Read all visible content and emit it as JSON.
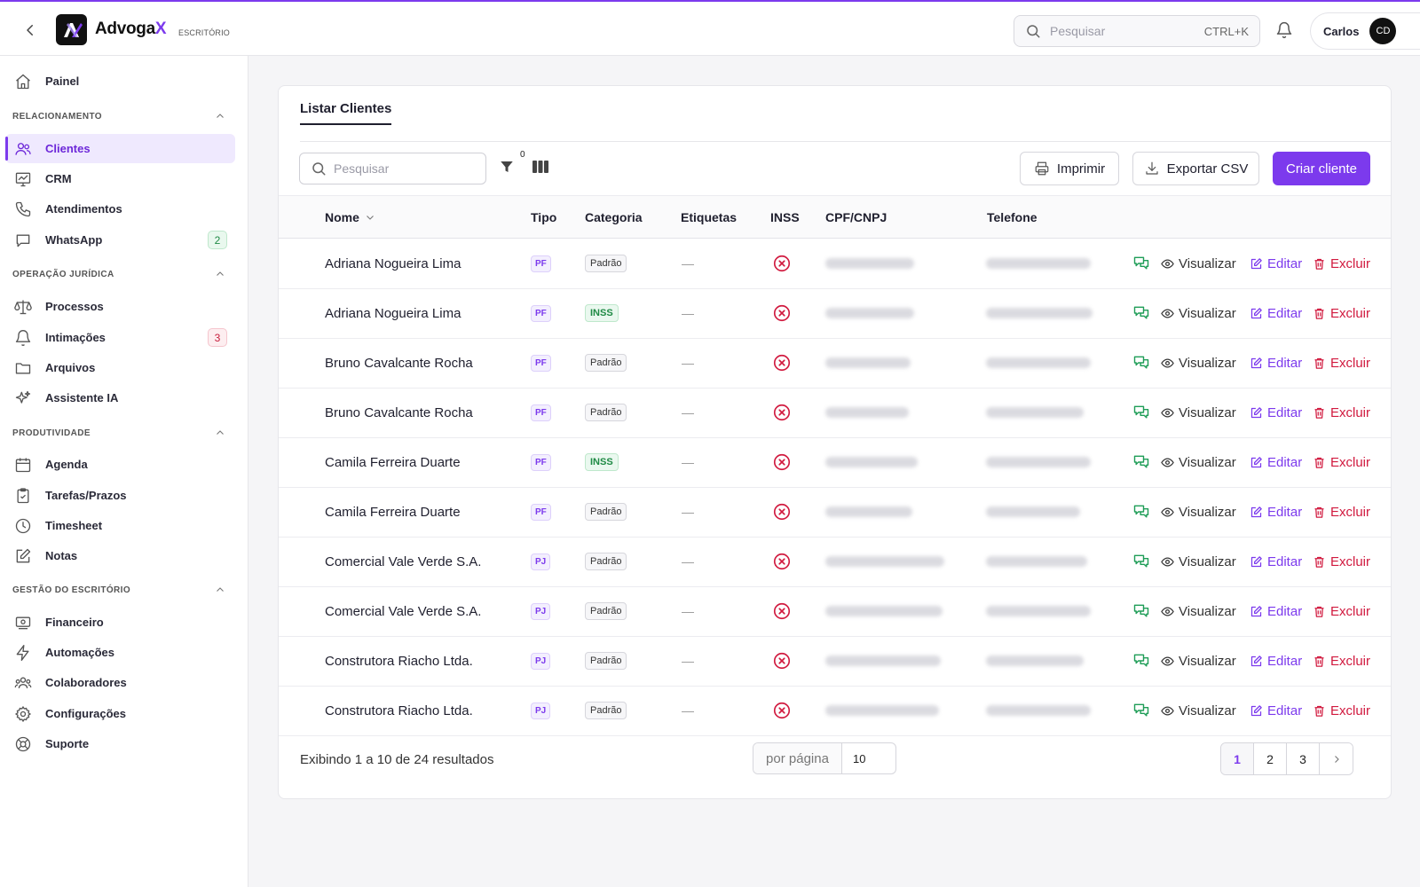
{
  "app": {
    "brand_main": "Advoga",
    "brand_x": "X",
    "brand_sub": "ESCRITÓRIO"
  },
  "header": {
    "search_placeholder": "Pesquisar",
    "search_shortcut": "CTRL+K",
    "user_name": "Carlos",
    "user_initials": "CD"
  },
  "sidebar": {
    "painel": "Painel",
    "sections": {
      "relacionamento": "RELACIONAMENTO",
      "operacao": "OPERAÇÃO JURÍDICA",
      "produtividade": "PRODUTIVIDADE",
      "gestao": "GESTÃO DO ESCRITÓRIO"
    },
    "items": {
      "clientes": "Clientes",
      "crm": "CRM",
      "atendimentos": "Atendimentos",
      "whatsapp": "WhatsApp",
      "whatsapp_badge": "2",
      "processos": "Processos",
      "intimacoes": "Intimações",
      "intimacoes_badge": "3",
      "arquivos": "Arquivos",
      "assistente": "Assistente IA",
      "agenda": "Agenda",
      "tarefas": "Tarefas/Prazos",
      "timesheet": "Timesheet",
      "notas": "Notas",
      "financeiro": "Financeiro",
      "automacoes": "Automações",
      "colaboradores": "Colaboradores",
      "configuracoes": "Configurações",
      "suporte": "Suporte"
    }
  },
  "main": {
    "tab": "Listar Clientes",
    "search_placeholder": "Pesquisar",
    "filter_count": "0",
    "print_label": "Imprimir",
    "csv_label": "Exportar CSV",
    "create_label": "Criar cliente",
    "columns": {
      "nome": "Nome",
      "tipo": "Tipo",
      "categoria": "Categoria",
      "etiquetas": "Etiquetas",
      "inss": "INSS",
      "cpf": "CPF/CNPJ",
      "telefone": "Telefone"
    },
    "actions": {
      "view": "Visualizar",
      "edit": "Editar",
      "delete": "Excluir"
    },
    "rows": [
      {
        "name": "Adriana Nogueira Lima",
        "tipo": "PF",
        "categoria": "Padrão",
        "etiquetas": "—"
      },
      {
        "name": "Adriana Nogueira Lima",
        "tipo": "PF",
        "categoria": "INSS",
        "etiquetas": "—"
      },
      {
        "name": "Bruno Cavalcante Rocha",
        "tipo": "PF",
        "categoria": "Padrão",
        "etiquetas": "—"
      },
      {
        "name": "Bruno Cavalcante Rocha",
        "tipo": "PF",
        "categoria": "Padrão",
        "etiquetas": "—"
      },
      {
        "name": "Camila Ferreira Duarte",
        "tipo": "PF",
        "categoria": "INSS",
        "etiquetas": "—"
      },
      {
        "name": "Camila Ferreira Duarte",
        "tipo": "PF",
        "categoria": "Padrão",
        "etiquetas": "—"
      },
      {
        "name": "Comercial Vale Verde S.A.",
        "tipo": "PJ",
        "categoria": "Padrão",
        "etiquetas": "—"
      },
      {
        "name": "Comercial Vale Verde S.A.",
        "tipo": "PJ",
        "categoria": "Padrão",
        "etiquetas": "—"
      },
      {
        "name": "Construtora Riacho Ltda.",
        "tipo": "PJ",
        "categoria": "Padrão",
        "etiquetas": "—"
      },
      {
        "name": "Construtora Riacho Ltda.",
        "tipo": "PJ",
        "categoria": "Padrão",
        "etiquetas": "—"
      }
    ],
    "footer_text": "Exibindo 1 a 10 de 24 resultados",
    "per_page_label": "por página",
    "per_page_value": "10",
    "pages": [
      "1",
      "2",
      "3"
    ]
  },
  "colors": {
    "accent": "#7c3aed",
    "danger": "#d11a3f",
    "success": "#1f9d57"
  }
}
